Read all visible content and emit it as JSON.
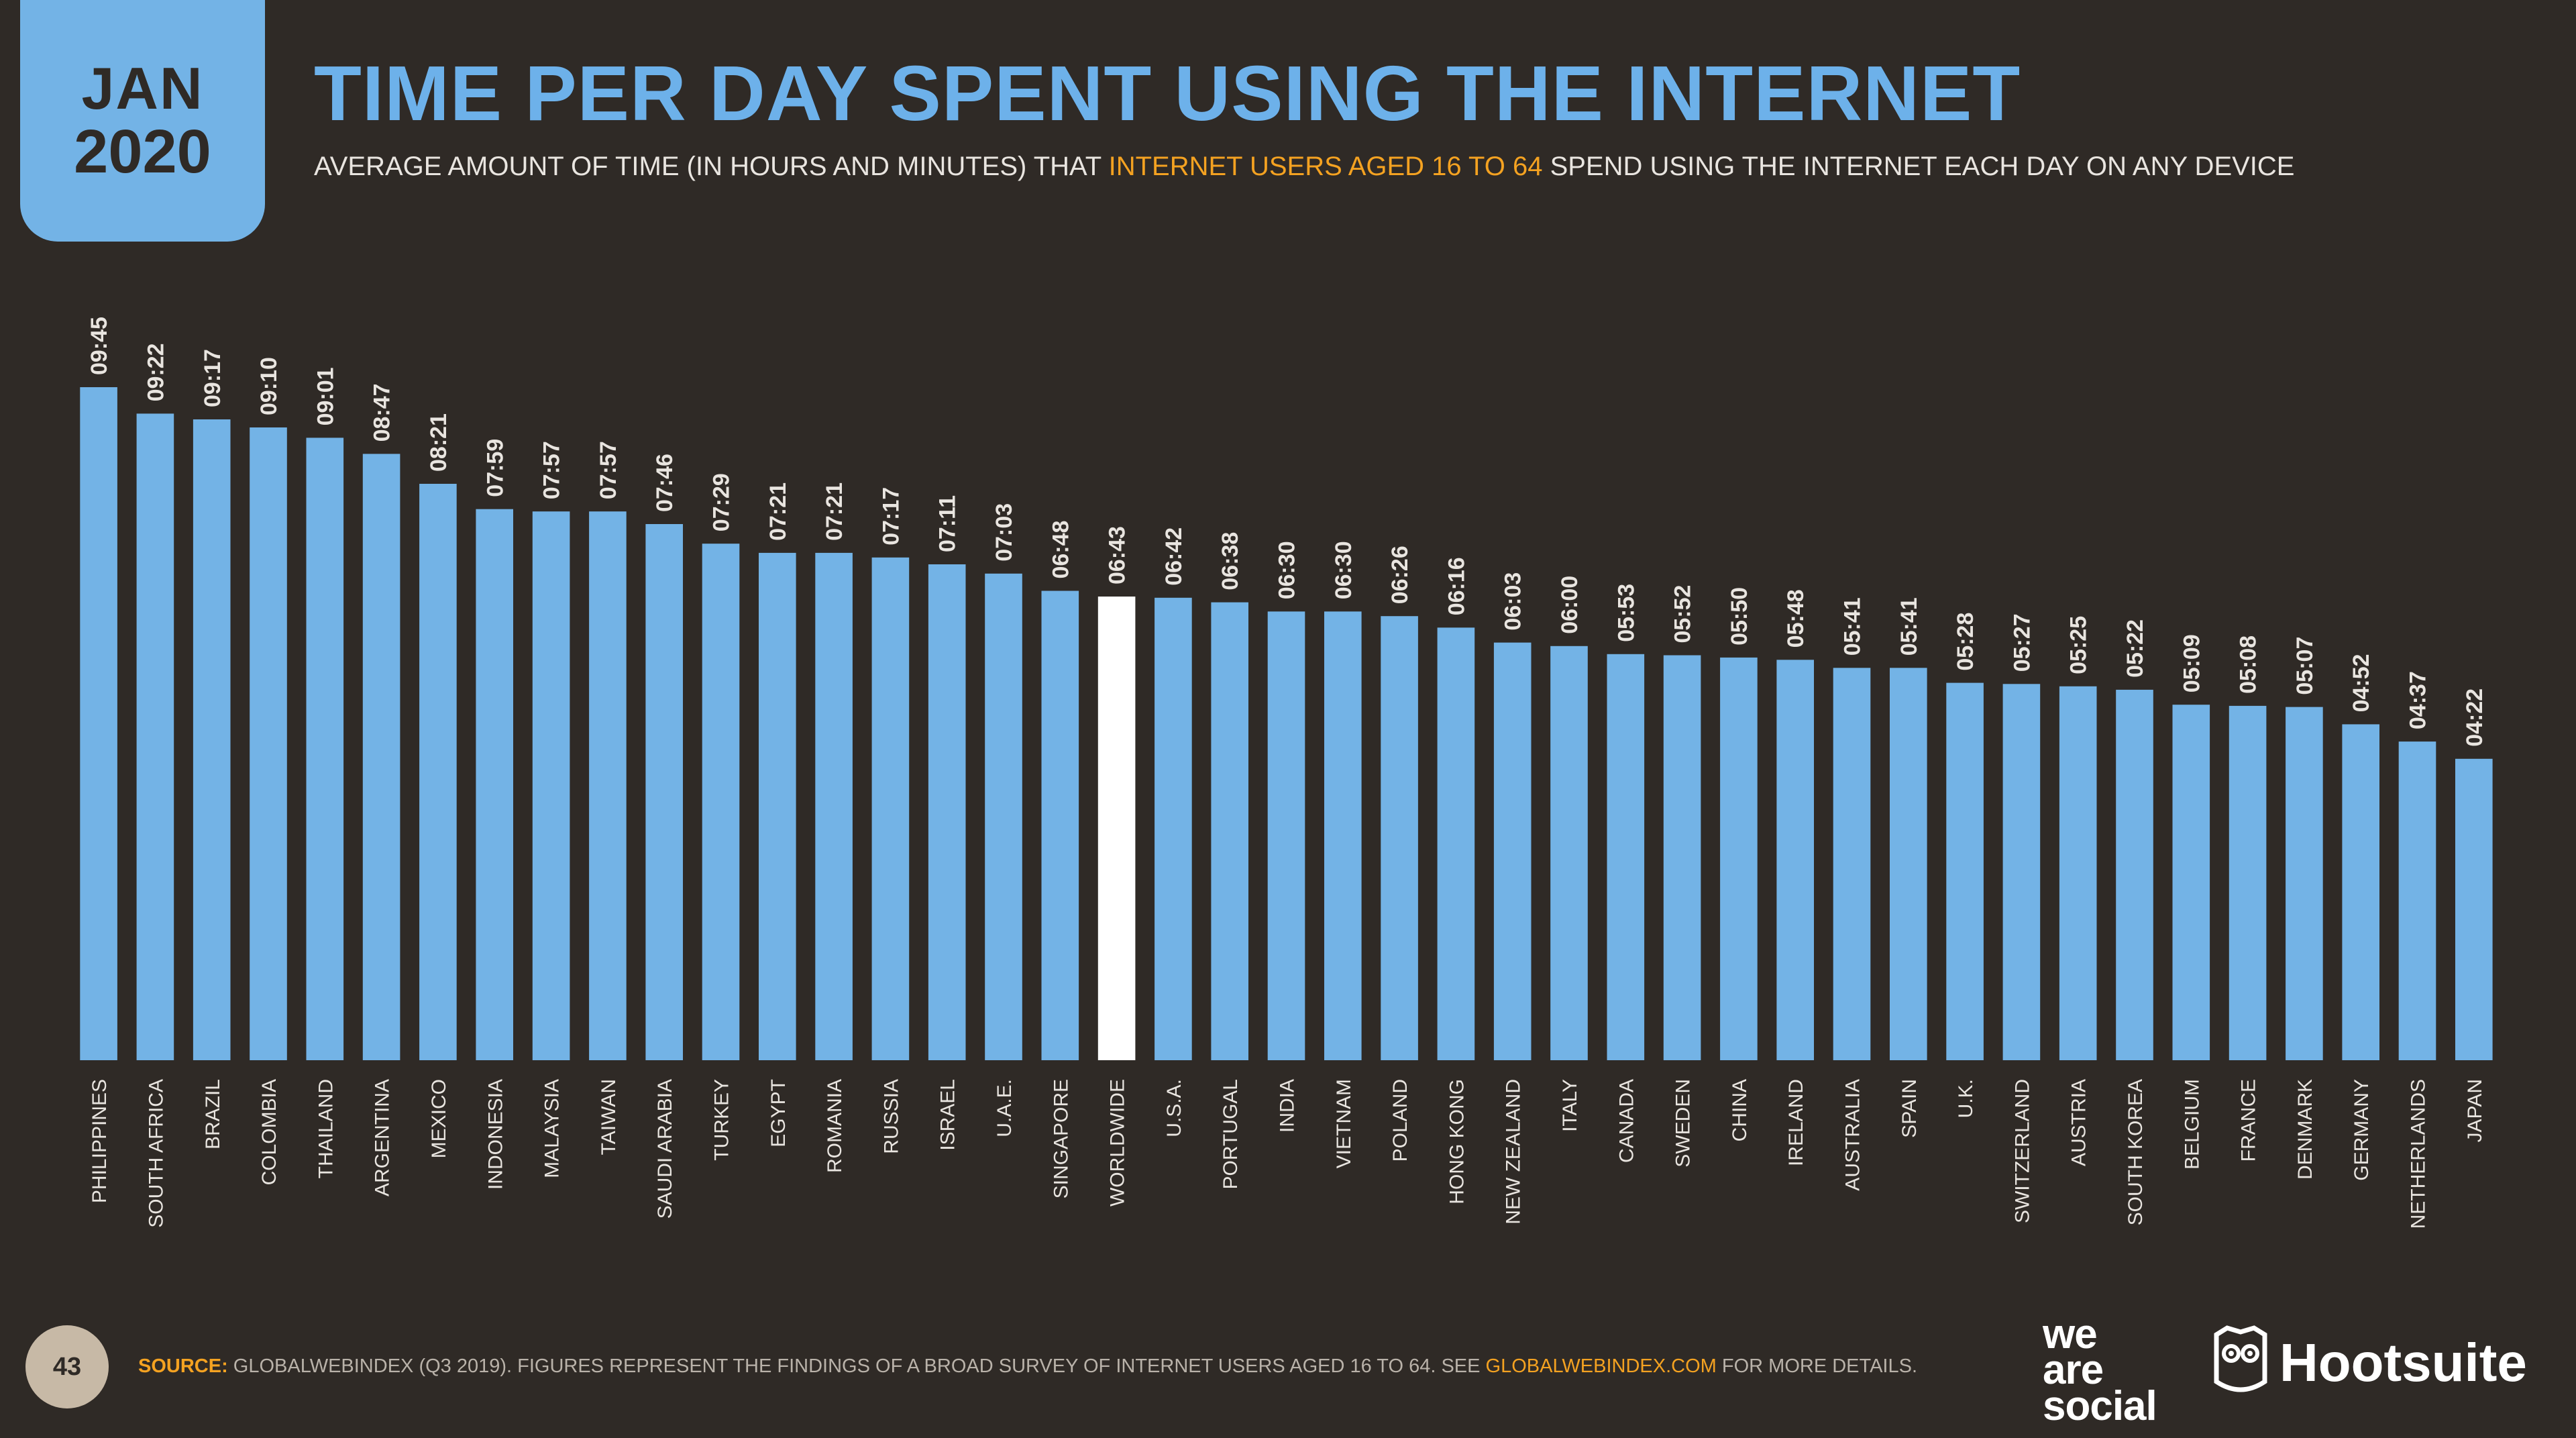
{
  "header": {
    "month": "JAN",
    "year": "2020",
    "title": "TIME PER DAY SPENT USING THE INTERNET",
    "subtitle_pre": "AVERAGE AMOUNT OF TIME (IN HOURS AND MINUTES) THAT ",
    "subtitle_highlight": "INTERNET USERS AGED 16 TO 64",
    "subtitle_post": " SPEND USING THE INTERNET EACH DAY ON ANY DEVICE"
  },
  "colors": {
    "background": "#2f2a26",
    "bar": "#73b3e6",
    "bar_highlight": "#ffffff",
    "accent": "#f4a221",
    "label": "#e9e5e0"
  },
  "chart_data": {
    "type": "bar",
    "categories": [
      "PHILIPPINES",
      "SOUTH AFRICA",
      "BRAZIL",
      "COLOMBIA",
      "THAILAND",
      "ARGENTINA",
      "MEXICO",
      "INDONESIA",
      "MALAYSIA",
      "TAIWAN",
      "SAUDI ARABIA",
      "TURKEY",
      "EGYPT",
      "ROMANIA",
      "RUSSIA",
      "ISRAEL",
      "U.A.E.",
      "SINGAPORE",
      "WORLDWIDE",
      "U.S.A.",
      "PORTUGAL",
      "INDIA",
      "VIETNAM",
      "POLAND",
      "HONG KONG",
      "NEW ZEALAND",
      "ITALY",
      "CANADA",
      "SWEDEN",
      "CHINA",
      "IRELAND",
      "AUSTRALIA",
      "SPAIN",
      "U.K.",
      "SWITZERLAND",
      "AUSTRIA",
      "SOUTH KOREA",
      "BELGIUM",
      "FRANCE",
      "DENMARK",
      "GERMANY",
      "NETHERLANDS",
      "JAPAN"
    ],
    "value_labels": [
      "09:45",
      "09:22",
      "09:17",
      "09:10",
      "09:01",
      "08:47",
      "08:21",
      "07:59",
      "07:57",
      "07:57",
      "07:46",
      "07:29",
      "07:21",
      "07:21",
      "07:17",
      "07:11",
      "07:03",
      "06:48",
      "06:43",
      "06:42",
      "06:38",
      "06:30",
      "06:30",
      "06:26",
      "06:16",
      "06:03",
      "06:00",
      "05:53",
      "05:52",
      "05:50",
      "05:48",
      "05:41",
      "05:41",
      "05:28",
      "05:27",
      "05:25",
      "05:22",
      "05:09",
      "05:08",
      "05:07",
      "04:52",
      "04:37",
      "04:22"
    ],
    "values_minutes": [
      585,
      562,
      557,
      550,
      541,
      527,
      501,
      479,
      477,
      477,
      466,
      449,
      441,
      441,
      437,
      431,
      423,
      408,
      403,
      402,
      398,
      390,
      390,
      386,
      376,
      363,
      360,
      353,
      352,
      350,
      348,
      341,
      341,
      328,
      327,
      325,
      322,
      309,
      308,
      307,
      292,
      277,
      262
    ],
    "highlight_category": "WORLDWIDE",
    "ylabel": "",
    "xlabel": "",
    "grid": false,
    "legend": "none"
  },
  "footer": {
    "page_number": "43",
    "source_label": "SOURCE:",
    "source_text": " GLOBALWEBINDEX (Q3 2019). FIGURES REPRESENT THE FINDINGS OF A BROAD SURVEY OF INTERNET USERS AGED 16 TO 64. SEE ",
    "source_link": "GLOBALWEBINDEX.COM",
    "source_tail": " FOR MORE DETAILS.",
    "logo_was_1": "we",
    "logo_was_2": "are",
    "logo_was_3": "social",
    "logo_hootsuite": "Hootsuite"
  }
}
